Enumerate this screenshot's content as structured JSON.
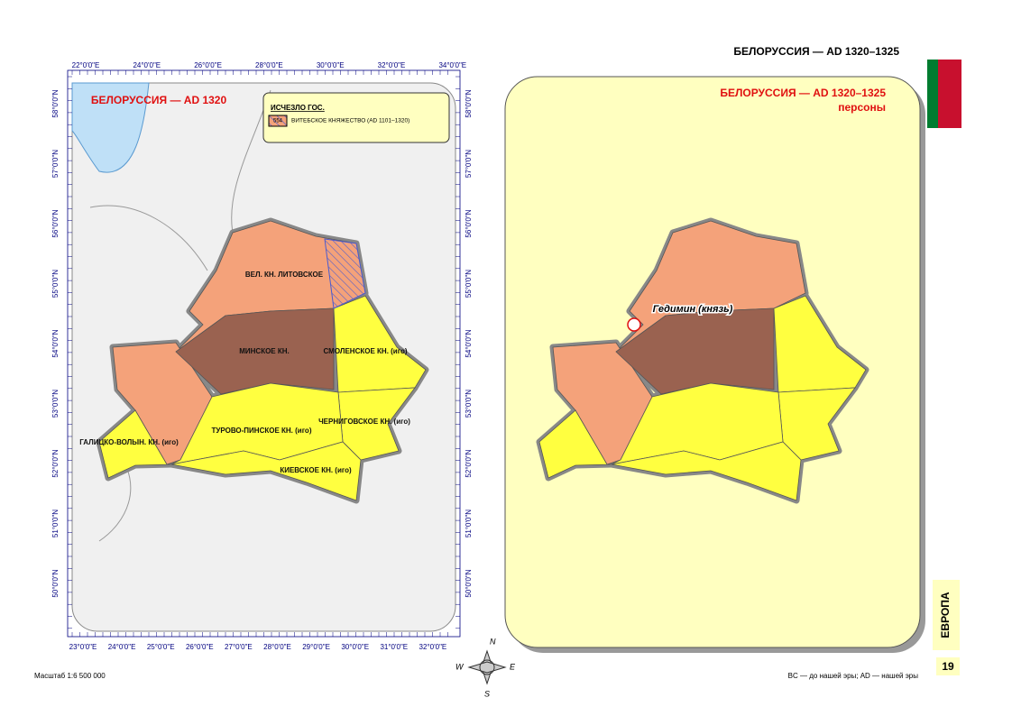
{
  "header": {
    "title": "БЕЛОРУССИЯ — AD 1320–1325"
  },
  "left_map": {
    "title": "БЕЛОРУССИЯ — AD 1320",
    "legend": {
      "title": "ИСЧЕЗЛО ГОС.",
      "code": "554",
      "item": "ВИТЕБСКОЕ КНЯЖЕСТВО (AD 1101–1320)"
    },
    "top_ticks": [
      "22°0'0\"E",
      "24°0'0\"E",
      "26°0'0\"E",
      "28°0'0\"E",
      "30°0'0\"E",
      "32°0'0\"E",
      "34°0'0\"E"
    ],
    "bottom_ticks": [
      "23°0'0\"E",
      "24°0'0\"E",
      "25°0'0\"E",
      "26°0'0\"E",
      "27°0'0\"E",
      "28°0'0\"E",
      "29°0'0\"E",
      "30°0'0\"E",
      "31°0'0\"E",
      "32°0'0\"E"
    ],
    "left_ticks": [
      "58°0'0\"N",
      "57°0'0\"N",
      "56°0'0\"N",
      "55°0'0\"N",
      "54°0'0\"N",
      "53°0'0\"N",
      "52°0'0\"N",
      "51°0'0\"N",
      "50°0'0\"N"
    ],
    "right_ticks": [
      "58°0'0\"N",
      "57°0'0\"N",
      "56°0'0\"N",
      "55°0'0\"N",
      "54°0'0\"N",
      "53°0'0\"N",
      "52°0'0\"N",
      "51°0'0\"N",
      "50°0'0\"N"
    ],
    "regions": [
      "ВЕЛ. КН. ЛИТОВСКОЕ",
      "МИНСКОЕ КН.",
      "СМОЛЕНСКОЕ КН. (иго)",
      "ЧЕРНИГОВСКОЕ КН. (иго)",
      "ТУРОВО-ПИНСКОЕ КН. (иго)",
      "ГАЛИЦКО-ВОЛЫН. КН. (иго)",
      "КИЕВСКОЕ КН. (иго)"
    ]
  },
  "right_map": {
    "title": "БЕЛОРУССИЯ — AD 1320–1325",
    "subtitle": "персоны",
    "person": "Гедимин (князь)"
  },
  "compass": {
    "n": "N",
    "e": "E",
    "s": "S",
    "w": "W"
  },
  "sidebar": {
    "section": "ЕВРОПА",
    "page": "19"
  },
  "footer": {
    "scale": "Масштаб 1:6 500 000",
    "note": "BC — до нашей эры; AD — нашей эры"
  }
}
